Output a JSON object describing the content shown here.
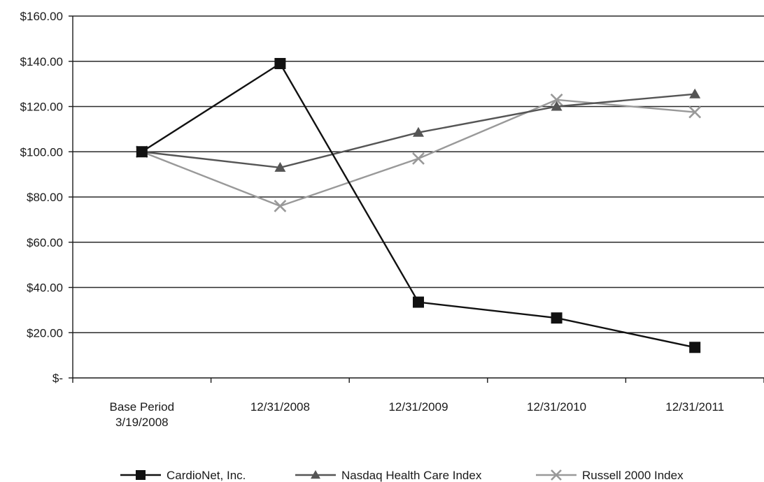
{
  "chart_data": {
    "type": "line",
    "categories": [
      "Base Period\n3/19/2008",
      "12/31/2008",
      "12/31/2009",
      "12/31/2010",
      "12/31/2011"
    ],
    "ylim": [
      0,
      160
    ],
    "yticks": [
      "$-",
      "$20.00",
      "$40.00",
      "$60.00",
      "$80.00",
      "$100.00",
      "$120.00",
      "$140.00",
      "$160.00"
    ],
    "grid": true,
    "legend_position": "bottom",
    "series": [
      {
        "name": "CardioNet, Inc.",
        "values": [
          100,
          139,
          33.5,
          26.5,
          13.5
        ],
        "marker": "square",
        "color": "#111111"
      },
      {
        "name": "Nasdaq Health Care Index",
        "values": [
          100,
          93,
          108.5,
          120,
          125.5
        ],
        "marker": "triangle",
        "color": "#555555"
      },
      {
        "name": "Russell 2000 Index",
        "values": [
          100,
          76,
          97,
          123,
          117.5
        ],
        "marker": "x",
        "color": "#999999"
      }
    ]
  }
}
